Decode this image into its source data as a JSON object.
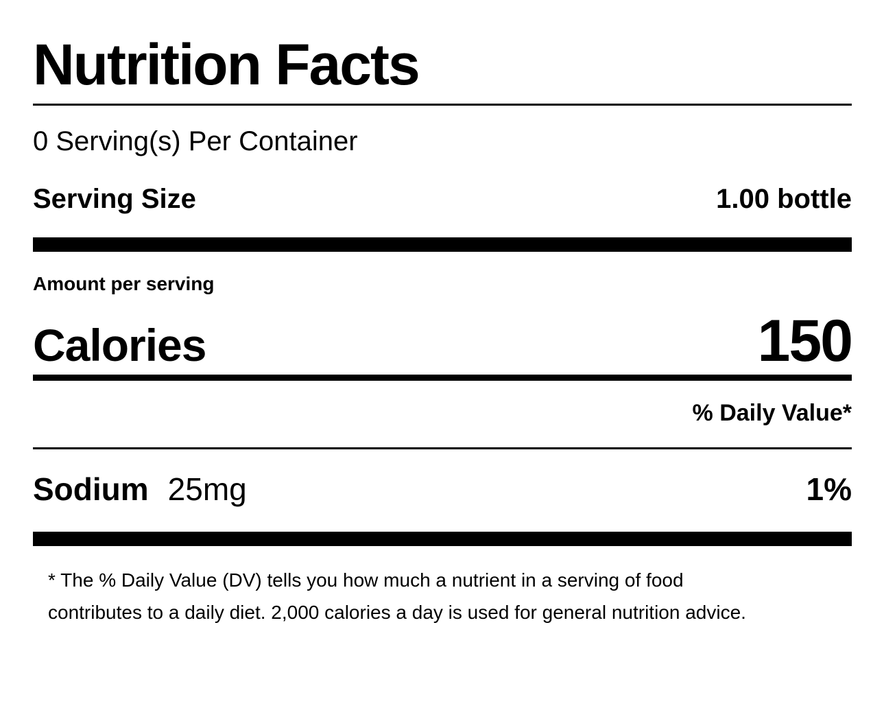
{
  "label": {
    "title": "Nutrition Facts",
    "servings_per_container": "0 Serving(s) Per Container",
    "serving_size": {
      "label": "Serving Size",
      "value": "1.00 bottle"
    },
    "amount_per_serving": "Amount per serving",
    "calories": {
      "label": "Calories",
      "value": "150"
    },
    "daily_value_header": "% Daily Value*",
    "nutrients": [
      {
        "name": "Sodium",
        "amount": "25mg",
        "daily_value": "1%"
      }
    ],
    "footnote": {
      "line1": "* The % Daily Value (DV) tells you how much a nutrient in a serving of food",
      "line2": "contributes to a daily diet. 2,000 calories a day is used for general nutrition advice."
    }
  }
}
